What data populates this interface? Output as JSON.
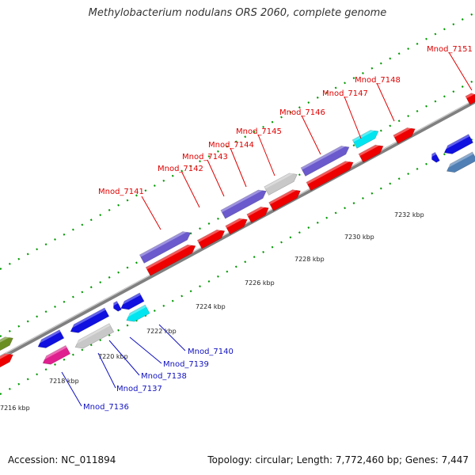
{
  "title": "Methylobacterium nodulans ORS 2060, complete genome",
  "footer": {
    "accession": "Accession: NC_011894",
    "summary": "Topology: circular; Length: 7,772,460 bp; Genes: 7,447"
  },
  "ticks": [
    {
      "label": "7216 kbp"
    },
    {
      "label": "7218 kbp"
    },
    {
      "label": "7220 kbp"
    },
    {
      "label": "7222 kbp"
    },
    {
      "label": "7224 kbp"
    },
    {
      "label": "7226 kbp"
    },
    {
      "label": "7228 kbp"
    },
    {
      "label": "7230 kbp"
    },
    {
      "label": "7232 kbp"
    }
  ],
  "genes_top": [
    {
      "label": "Mnod_7141",
      "color": "#e00000"
    },
    {
      "label": "Mnod_7142",
      "color": "#e00000"
    },
    {
      "label": "Mnod_7143",
      "color": "#e00000"
    },
    {
      "label": "Mnod_7144",
      "color": "#e00000"
    },
    {
      "label": "Mnod_7145",
      "color": "#e00000"
    },
    {
      "label": "Mnod_7146",
      "color": "#e00000"
    },
    {
      "label": "Mnod_7147",
      "color": "#e00000"
    },
    {
      "label": "Mnod_7148",
      "color": "#e00000"
    },
    {
      "label": "Mnod_7151",
      "color": "#e00000"
    }
  ],
  "genes_bottom": [
    {
      "label": "Mnod_7136",
      "color": "#1010c0"
    },
    {
      "label": "Mnod_7137",
      "color": "#1010c0"
    },
    {
      "label": "Mnod_7138",
      "color": "#1010c0"
    },
    {
      "label": "Mnod_7139",
      "color": "#1010c0"
    },
    {
      "label": "Mnod_7140",
      "color": "#1010c0"
    }
  ],
  "colors": {
    "backbone": "#808080",
    "dots": "#009900",
    "red_gene": "#ee0000",
    "blue_gene": "#1010e0",
    "purple_gene": "#6a5acd",
    "gray_gene": "#c8c8c8",
    "cyan_gene": "#00e5f0",
    "magenta_gene": "#e0208e",
    "steelblue_gene": "#4f7fb4",
    "olive_gene": "#6b8e23"
  }
}
